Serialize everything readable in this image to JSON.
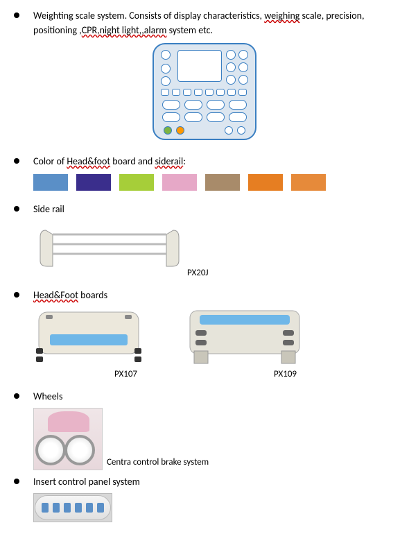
{
  "section1": {
    "text_before": "Weighting scale system. Consists of display characteristics, ",
    "text_squiggle1": " weighing",
    "text_mid1": " scale, precision, positioning ,",
    "text_squiggle2": "CPR,night light,,alarm",
    "text_after": " system etc."
  },
  "panel": {
    "border_color": "#3a7fc2",
    "bg_color": "#dce6f0"
  },
  "section2": {
    "text_before": "Color of ",
    "text_squiggle": "Head&foot",
    "text_mid": " board and ",
    "text_squiggle2": "siderail",
    "text_after": ":"
  },
  "swatches": [
    "#5a8fc7",
    "#3a2e8c",
    "#a6ce39",
    "#e6a8c7",
    "#a88b6a",
    "#e67e22",
    "#e68a3a"
  ],
  "section3": {
    "label": "Side rail",
    "model": "PX20J"
  },
  "section4": {
    "text_squiggle": "Head&Foot",
    "text_after": " boards",
    "model1": "PX107",
    "model2": "PX109",
    "board1_accent": "#6fb7e8",
    "board2_accent": "#6fb7e8"
  },
  "section5": {
    "label": "Wheels",
    "caption": "Centra control brake system"
  },
  "section6": {
    "label": "Insert control panel system"
  }
}
